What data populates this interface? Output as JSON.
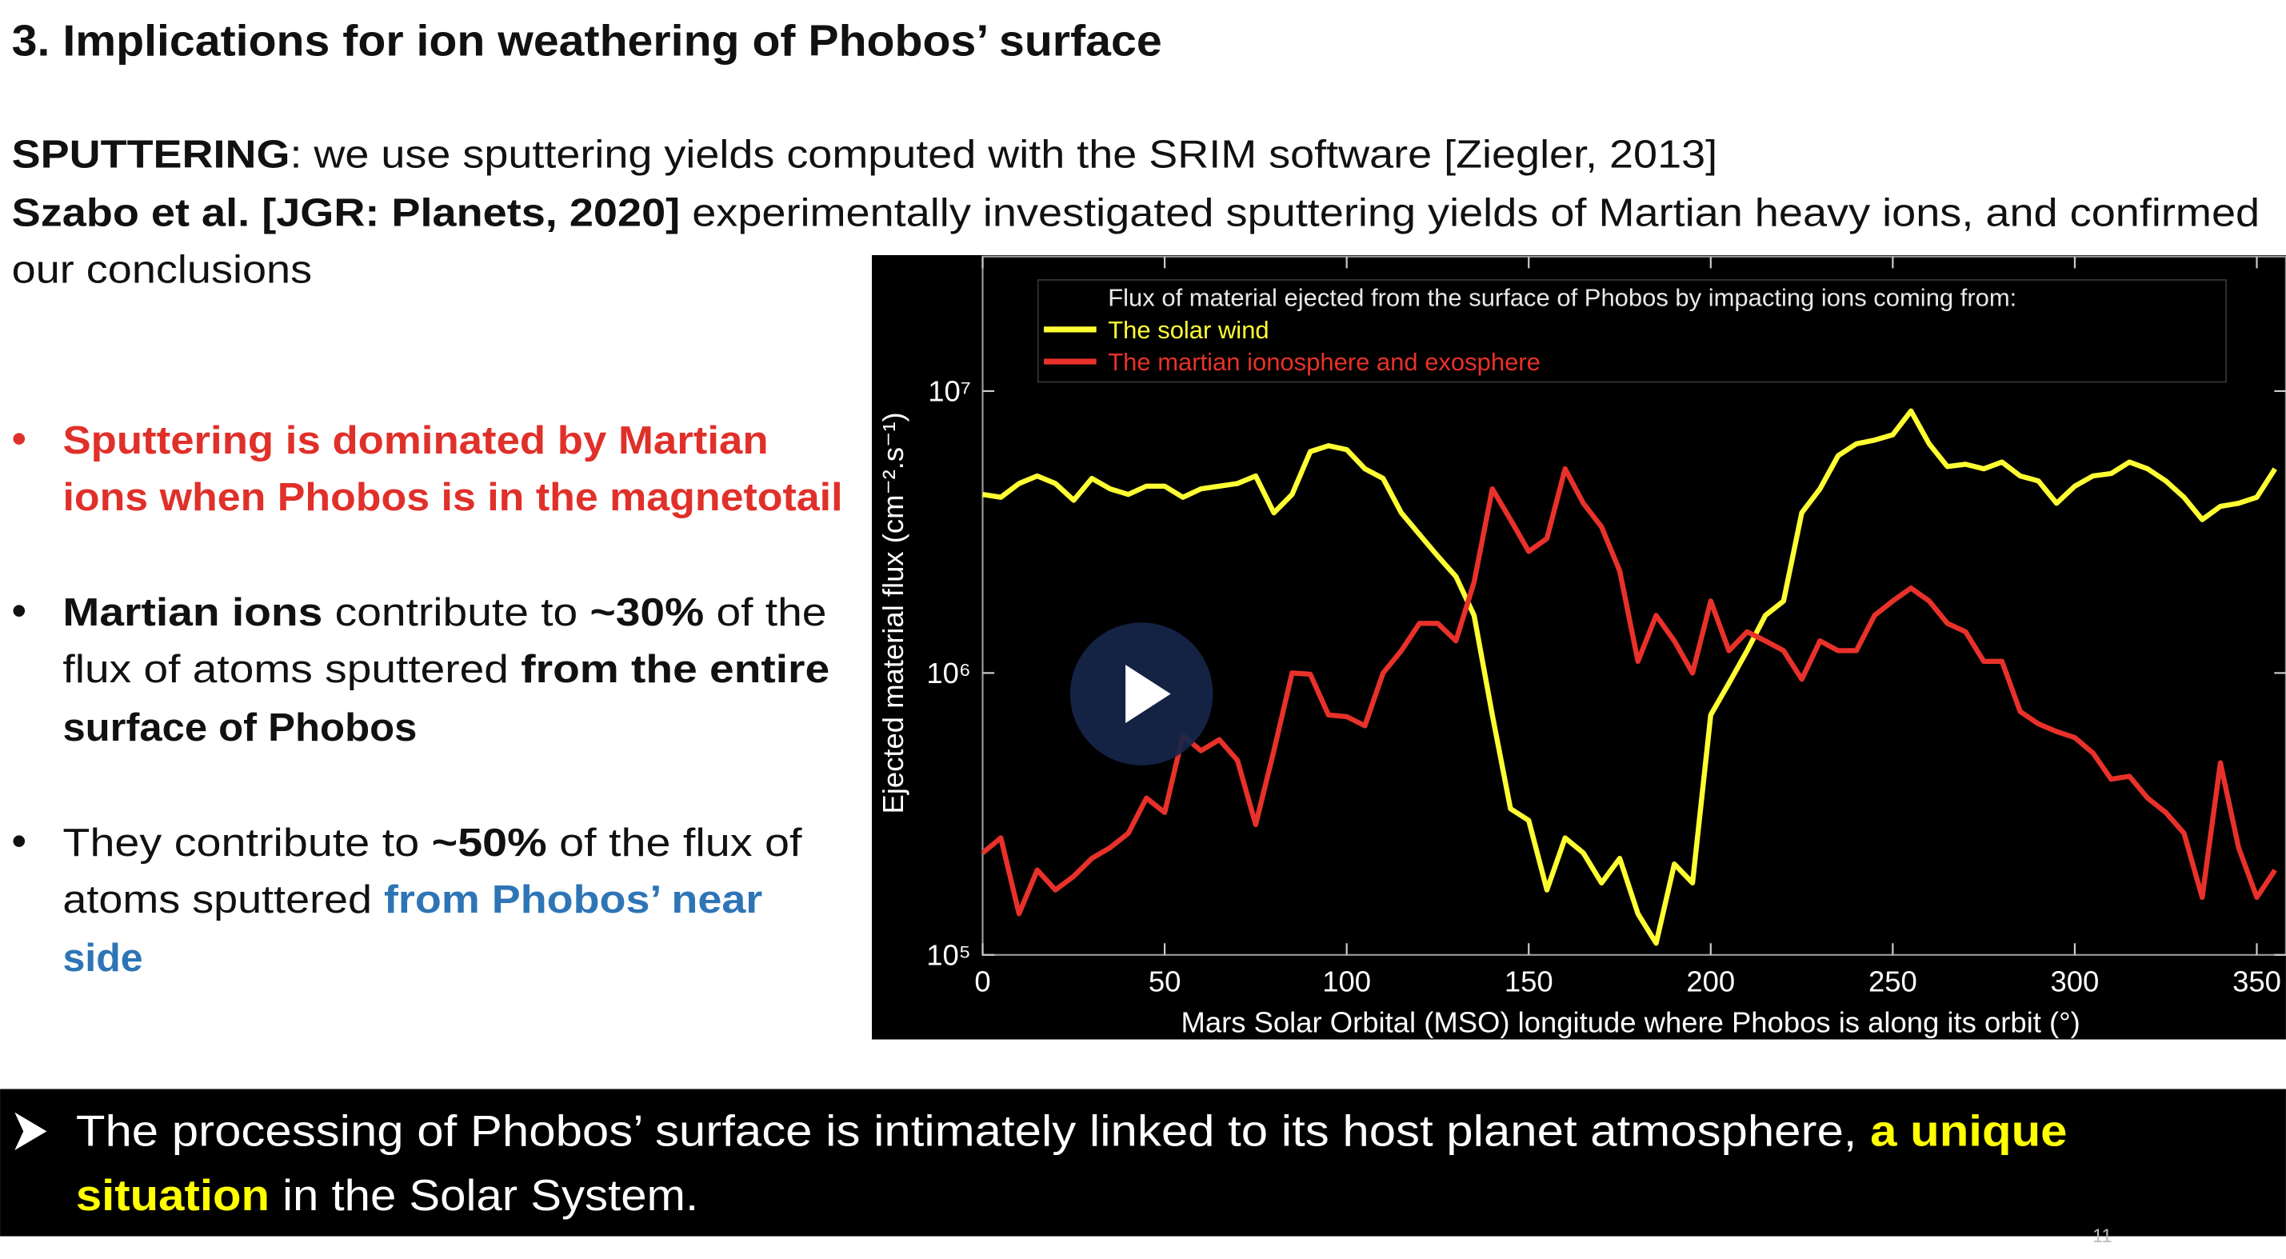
{
  "heading": "3. Implications for ion weathering of Phobos’ surface",
  "intro": [
    [
      "SPUTTERING",
      ": we use sputtering yields computed with the SRIM software [Ziegler, 2013]"
    ],
    [
      "Szabo et al. [JGR: Planets, 2020]",
      " experimentally investigated sputtering yields of Martian heavy ions, and confirmed"
    ],
    [
      "our conclusions"
    ]
  ],
  "bullets": [
    [
      [
        "Sputtering is dominated by Martian"
      ],
      [
        "ions when Phobos is in the magnetotail"
      ]
    ],
    [
      [
        "Martian ions",
        " contribute to ",
        "~30%",
        " of the"
      ],
      [
        "flux of atoms sputtered ",
        "from the entire"
      ],
      [
        "surface of Phobos"
      ]
    ],
    [
      [
        "They contribute to ",
        "~50%",
        " of the flux of"
      ],
      [
        "atoms sputtered ",
        "from Phobos’ near"
      ],
      [
        "side"
      ]
    ]
  ],
  "chart_data": {
    "type": "line",
    "legend_title": "Flux of material ejected from the surface of Phobos by impacting ions coming from:",
    "legend": "top",
    "xlabel": "Mars Solar Orbital (MSO) longitude where Phobos is along its orbit (°)",
    "ylabel": "Ejected material flux (cm⁻².s⁻¹)",
    "log_y": true,
    "x": [
      0,
      5,
      10,
      15,
      20,
      25,
      30,
      35,
      40,
      45,
      50,
      55,
      60,
      65,
      70,
      75,
      80,
      85,
      90,
      95,
      100,
      105,
      110,
      115,
      120,
      125,
      130,
      135,
      140,
      145,
      150,
      155,
      160,
      165,
      170,
      175,
      180,
      185,
      190,
      195,
      200,
      205,
      210,
      215,
      220,
      225,
      230,
      235,
      240,
      245,
      250,
      255,
      260,
      265,
      270,
      275,
      280,
      285,
      290,
      295,
      300,
      305,
      310,
      315,
      320,
      325,
      330,
      335,
      340,
      345,
      350,
      355
    ],
    "xlim": [
      0,
      358
    ],
    "xticks": [
      0,
      50,
      100,
      150,
      200,
      250,
      300,
      350
    ],
    "ylim": [
      100000,
      30000000
    ],
    "yticks": [
      {
        "value": 100000,
        "label": "10⁵"
      },
      {
        "value": 1000000,
        "label": "10⁶"
      },
      {
        "value": 10000000,
        "label": "10⁷"
      }
    ],
    "series": [
      {
        "name": "The solar wind",
        "color": "#ffff33",
        "values": [
          4300000,
          4200000,
          4700000,
          5000000,
          4700000,
          4100000,
          4900000,
          4500000,
          4300000,
          4600000,
          4600000,
          4200000,
          4500000,
          4600000,
          4700000,
          5000000,
          3700000,
          4300000,
          6100000,
          6400000,
          6200000,
          5300000,
          4900000,
          3700000,
          3100000,
          2600000,
          2200000,
          1600000,
          710000,
          330000,
          300000,
          170000,
          260000,
          230000,
          180000,
          220000,
          140000,
          110000,
          210000,
          180000,
          710000,
          920000,
          1200000,
          1600000,
          1800000,
          3700000,
          4500000,
          5900000,
          6500000,
          6700000,
          7000000,
          8500000,
          6500000,
          5400000,
          5500000,
          5300000,
          5600000,
          5000000,
          4800000,
          4000000,
          4600000,
          5000000,
          5100000,
          5600000,
          5300000,
          4800000,
          4200000,
          3500000,
          3900000,
          4000000,
          4200000,
          5300000
        ]
      },
      {
        "name": "The martian ionosphere and exosphere",
        "color": "#e8312a",
        "values": [
          230000,
          260000,
          140000,
          200000,
          170000,
          190000,
          220000,
          240000,
          270000,
          360000,
          320000,
          600000,
          530000,
          580000,
          490000,
          290000,
          530000,
          1000000,
          990000,
          710000,
          700000,
          650000,
          1000000,
          1200000,
          1500000,
          1500000,
          1300000,
          2100000,
          4500000,
          3500000,
          2700000,
          3000000,
          5300000,
          4000000,
          3300000,
          2300000,
          1100000,
          1600000,
          1300000,
          1000000,
          1800000,
          1200000,
          1400000,
          1300000,
          1200000,
          950000,
          1300000,
          1200000,
          1200000,
          1600000,
          1800000,
          2000000,
          1800000,
          1500000,
          1400000,
          1100000,
          1100000,
          730000,
          660000,
          620000,
          590000,
          520000,
          420000,
          430000,
          360000,
          320000,
          270000,
          160000,
          480000,
          240000,
          160000,
          200000
        ]
      }
    ]
  },
  "banner": [
    [
      "The processing of Phobos’ surface is intimately linked to its host planet atmosphere, ",
      "a unique"
    ],
    [
      "situation",
      " in the Solar System."
    ]
  ],
  "page_number": "11"
}
